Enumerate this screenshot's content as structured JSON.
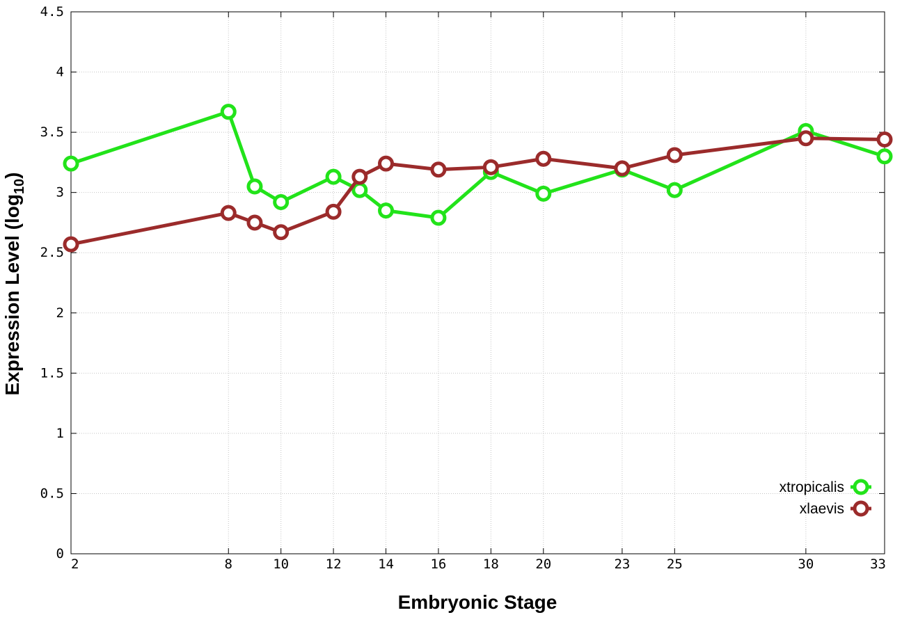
{
  "chart_data": {
    "type": "line",
    "title": "",
    "xlabel": "Embryonic Stage",
    "ylabel": {
      "main": "Expression Level (log",
      "sub": "10",
      "suffix": ")"
    },
    "xlim": [
      2,
      33
    ],
    "ylim": [
      0,
      4.5
    ],
    "x_ticks": [
      2,
      8,
      10,
      12,
      14,
      16,
      18,
      20,
      23,
      25,
      30,
      33
    ],
    "x_tick_labels": [
      "2",
      "8",
      "10",
      "12",
      "14",
      "16",
      "18",
      "20",
      "23",
      "25",
      "30",
      "33"
    ],
    "y_ticks": [
      0,
      0.5,
      1,
      1.5,
      2,
      2.5,
      3,
      3.5,
      4,
      4.5
    ],
    "y_tick_labels": [
      "0",
      "0.5",
      "1",
      "1.5",
      "2",
      "2.5",
      "3",
      "3.5",
      "4",
      "4.5"
    ],
    "grid": true,
    "legend_position": "bottom-right",
    "x": [
      2,
      8,
      9,
      10,
      12,
      13,
      14,
      16,
      18,
      20,
      23,
      25,
      30,
      33
    ],
    "series": [
      {
        "name": "xtropicalis",
        "color": "#22e31a",
        "values": [
          3.24,
          3.67,
          3.05,
          2.92,
          3.13,
          3.02,
          2.85,
          2.79,
          3.17,
          2.99,
          3.19,
          3.02,
          3.51,
          3.3
        ]
      },
      {
        "name": "xlaevis",
        "color": "#9b2b2b",
        "values": [
          2.57,
          2.83,
          2.75,
          2.67,
          2.84,
          3.13,
          3.24,
          3.19,
          3.21,
          3.28,
          3.2,
          3.31,
          3.45,
          3.44
        ]
      }
    ]
  }
}
